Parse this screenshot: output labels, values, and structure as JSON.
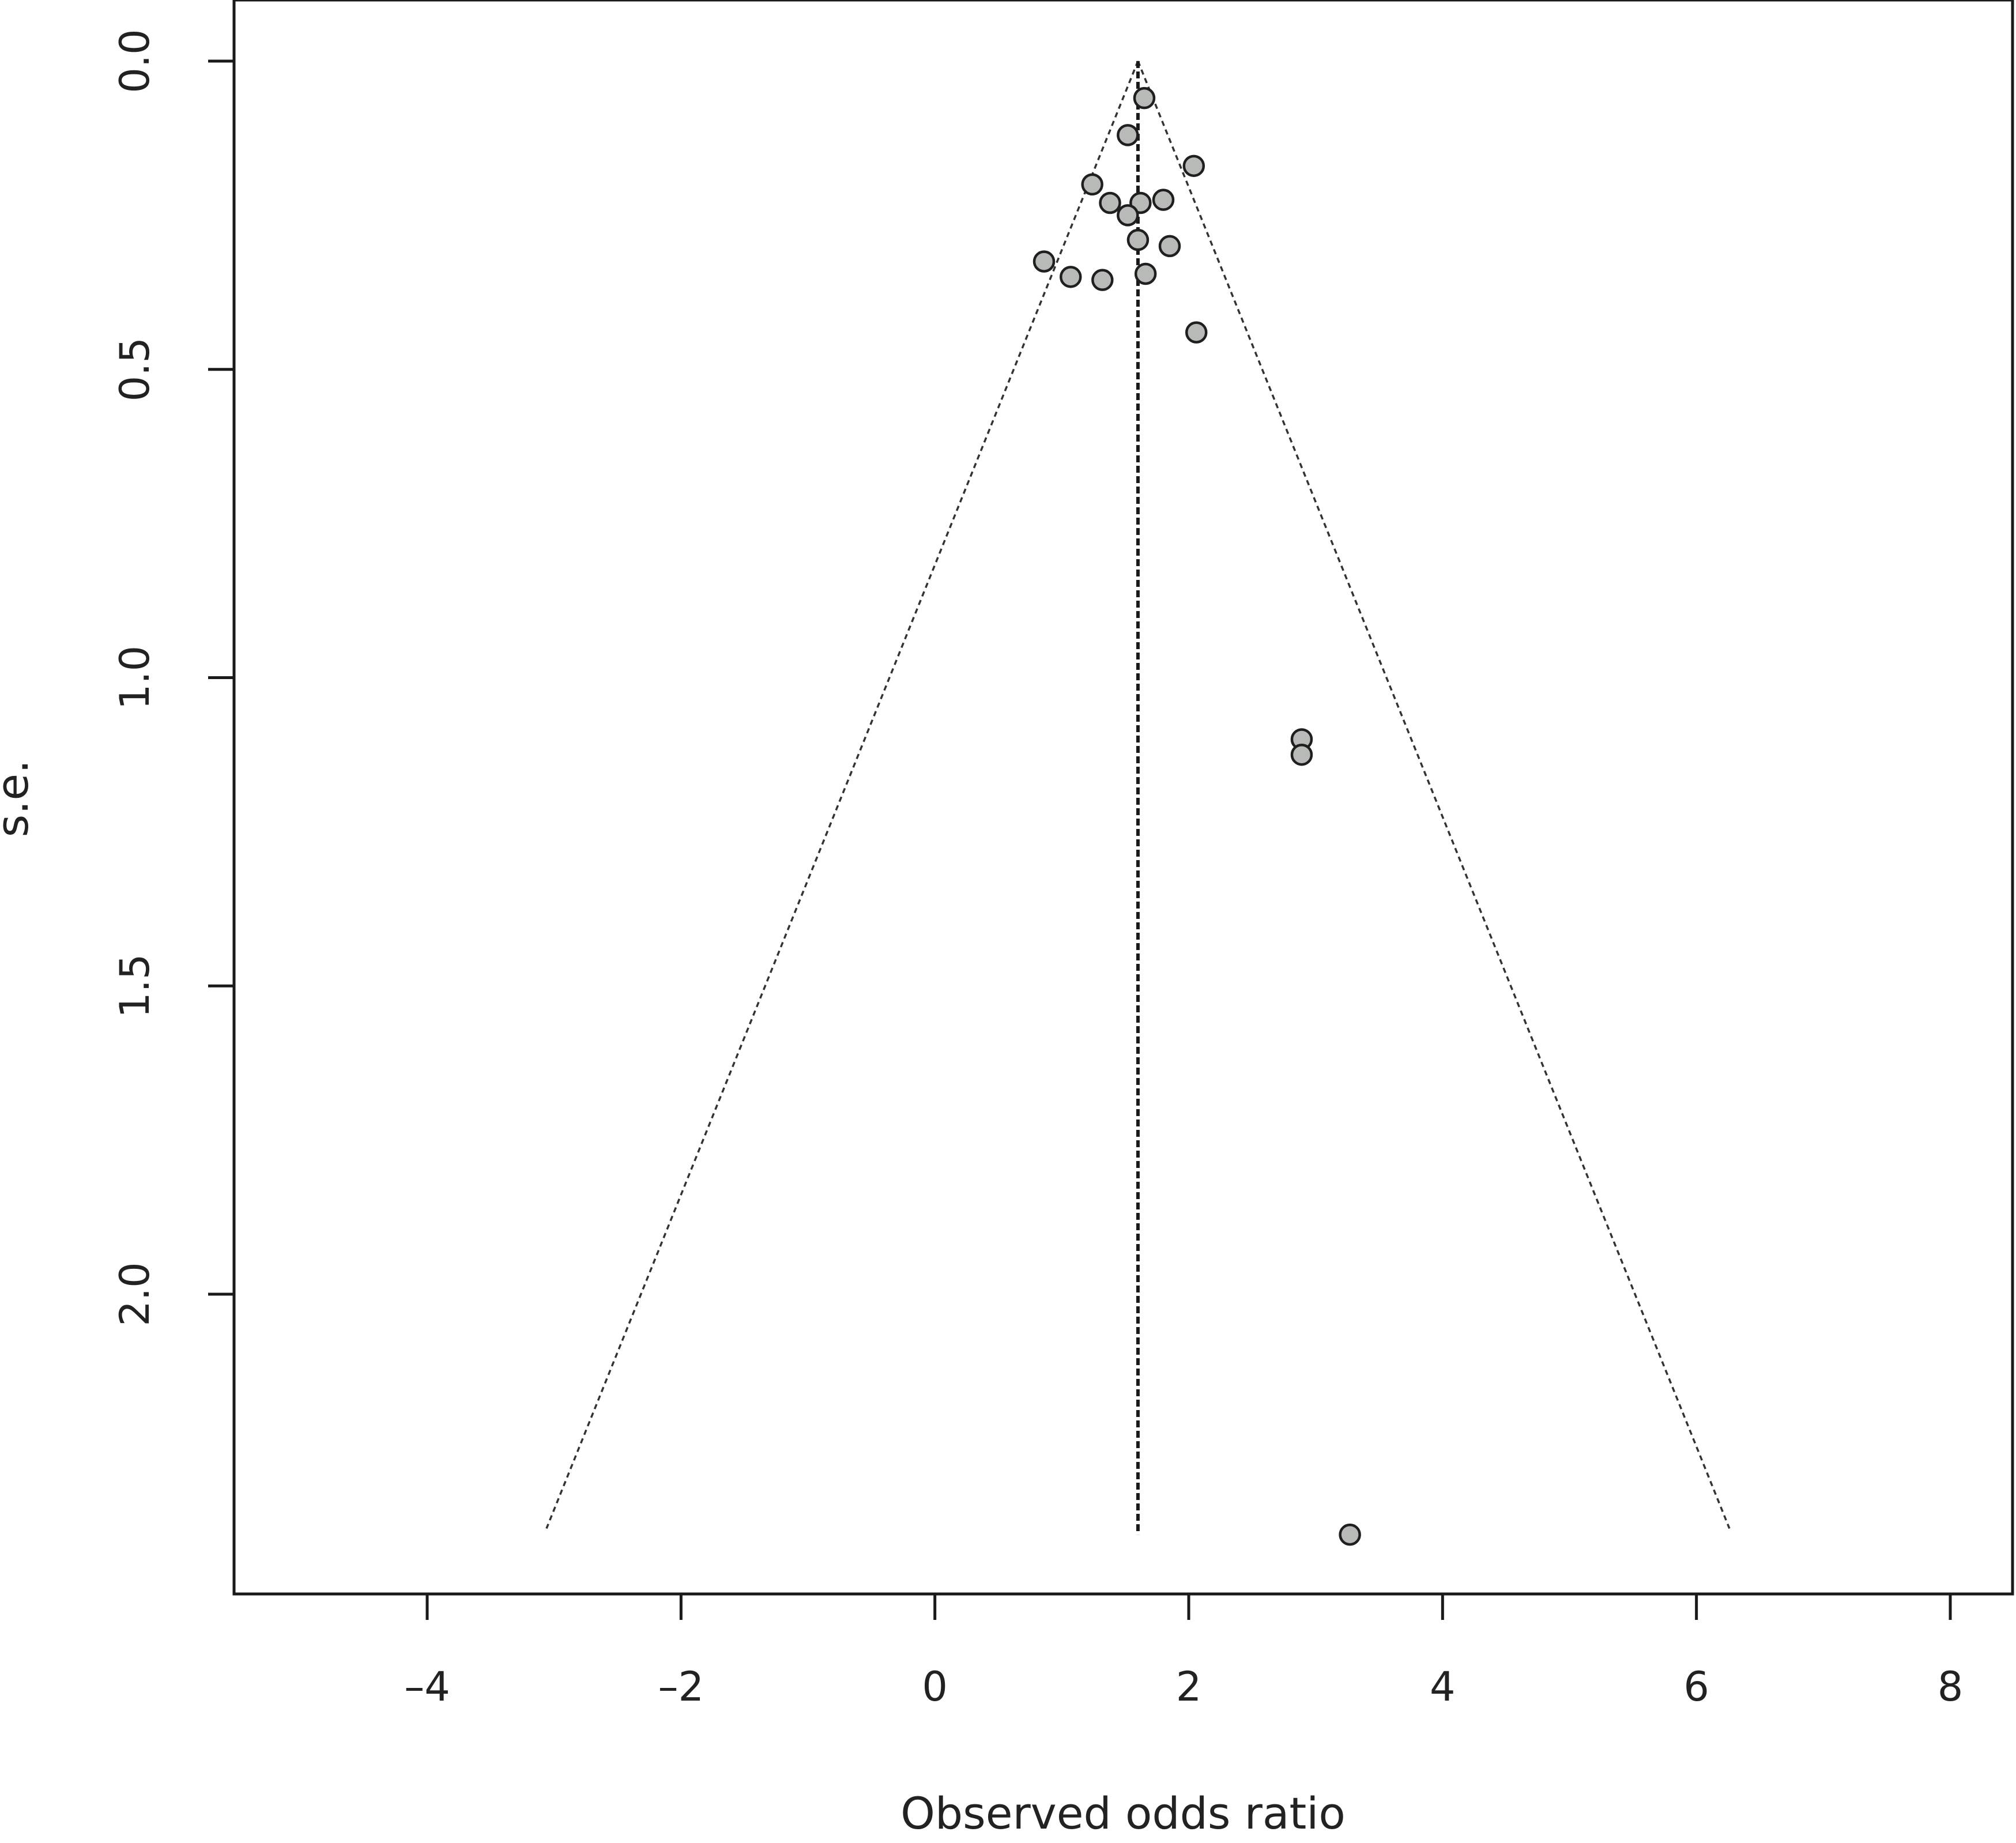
{
  "chart_data": {
    "type": "scatter",
    "subtype": "funnel",
    "title": "",
    "xlabel": "Observed odds ratio",
    "ylabel": "s.e.",
    "xlim": [
      -5.5,
      8.3
    ],
    "ylim": [
      2.47,
      -0.1
    ],
    "y_axis_inverted": true,
    "x_ticks": [
      -4,
      -2,
      0,
      2,
      4,
      6,
      8
    ],
    "x_tick_labels": [
      "–4",
      "–2",
      "0",
      "2",
      "4",
      "6",
      "8"
    ],
    "y_ticks": [
      0.0,
      0.5,
      1.0,
      1.5,
      2.0
    ],
    "y_tick_labels": [
      "0.0",
      "0.5",
      "1.0",
      "1.5",
      "2.0"
    ],
    "grid": false,
    "legend": "none",
    "summary_estimate": 1.6,
    "funnel": {
      "apex": [
        1.6,
        0.0
      ],
      "se_max": 2.38,
      "left_base": -3.06,
      "right_base": 6.26
    },
    "points": [
      {
        "x": 1.65,
        "y": 0.06
      },
      {
        "x": 1.52,
        "y": 0.12
      },
      {
        "x": 2.04,
        "y": 0.17
      },
      {
        "x": 1.24,
        "y": 0.2
      },
      {
        "x": 1.38,
        "y": 0.23
      },
      {
        "x": 1.62,
        "y": 0.23
      },
      {
        "x": 1.8,
        "y": 0.225
      },
      {
        "x": 1.52,
        "y": 0.25
      },
      {
        "x": 1.6,
        "y": 0.29
      },
      {
        "x": 1.85,
        "y": 0.3
      },
      {
        "x": 0.86,
        "y": 0.325
      },
      {
        "x": 1.07,
        "y": 0.35
      },
      {
        "x": 1.32,
        "y": 0.355
      },
      {
        "x": 1.66,
        "y": 0.345
      },
      {
        "x": 2.06,
        "y": 0.44
      },
      {
        "x": 2.89,
        "y": 1.1
      },
      {
        "x": 2.89,
        "y": 1.125
      },
      {
        "x": 3.27,
        "y": 2.39
      }
    ],
    "colors": {
      "point_fill": "#b7bab7",
      "point_stroke": "#1f1f1f",
      "lines": "#1a1a1a"
    }
  }
}
